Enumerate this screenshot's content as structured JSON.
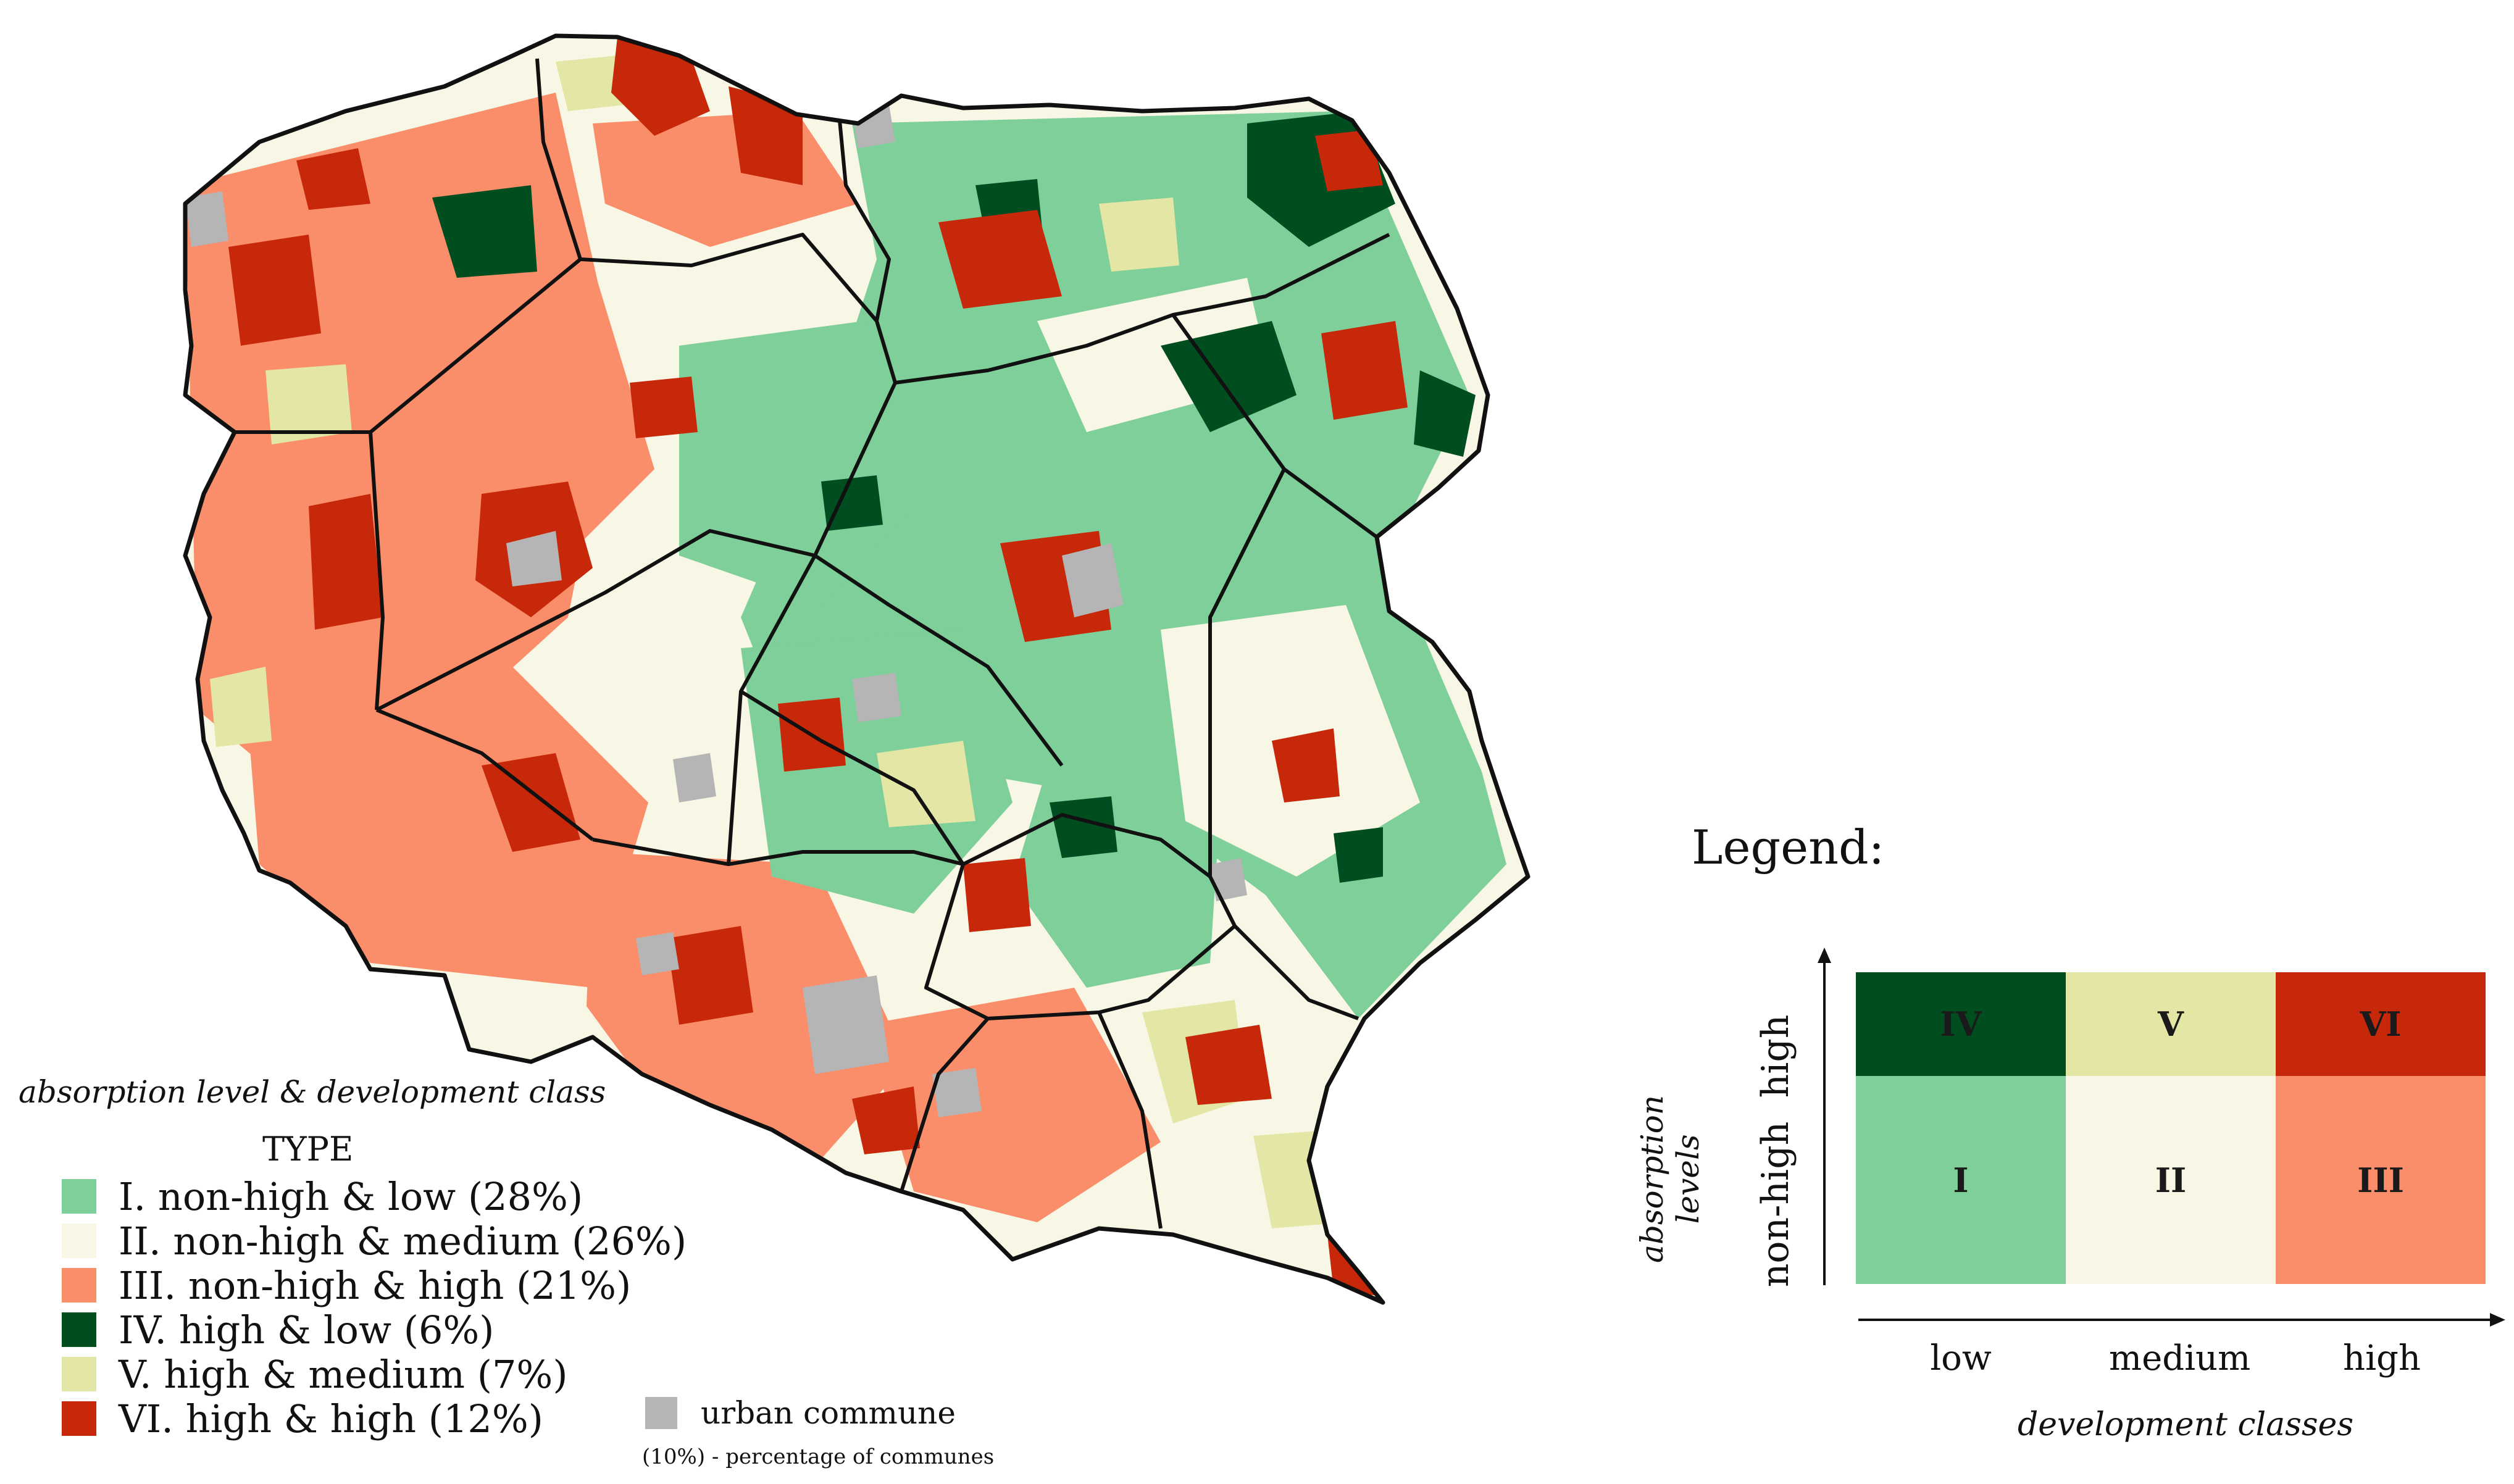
{
  "colors": {
    "type_I": "#7fcf9a",
    "type_II": "#f8f6e4",
    "type_III": "#fb8e6a",
    "type_IV": "#004d20",
    "type_V": "#e3e6a4",
    "type_VI": "#c8280a",
    "urban": "#b5b5b5",
    "border": "#111111"
  },
  "map": {
    "type_label": "absorption level & development class",
    "type_heading": "TYPE",
    "types": [
      {
        "label": "I. non-high & low (28%)",
        "color": "#7fcf9a"
      },
      {
        "label": "II. non-high & medium (26%)",
        "color": "#f8f6e4"
      },
      {
        "label": "III. non-high & high (21%)",
        "color": "#fb8e6a"
      },
      {
        "label": "IV. high & low (6%)",
        "color": "#004d20"
      },
      {
        "label": "V. high & medium (7%)",
        "color": "#e3e6a4"
      },
      {
        "label": "VI. high & high (12%)",
        "color": "#c8280a"
      }
    ],
    "urban_label": "urban commune",
    "percentage_note": "(10%) - percentage of communes"
  },
  "legend": {
    "title": "Legend:",
    "y_axis_title": "absorption levels",
    "rows": [
      "high",
      "non-high"
    ],
    "columns": [
      "low",
      "medium",
      "high"
    ],
    "x_axis_title": "development classes",
    "cells": [
      [
        {
          "label": "IV",
          "color": "#004d20"
        },
        {
          "label": "V",
          "color": "#e3e6a4"
        },
        {
          "label": "VI",
          "color": "#c8280a"
        }
      ],
      [
        {
          "label": "I",
          "color": "#7fcf9a"
        },
        {
          "label": "II",
          "color": "#f8f6e4"
        },
        {
          "label": "III",
          "color": "#fb8e6a"
        }
      ]
    ]
  }
}
